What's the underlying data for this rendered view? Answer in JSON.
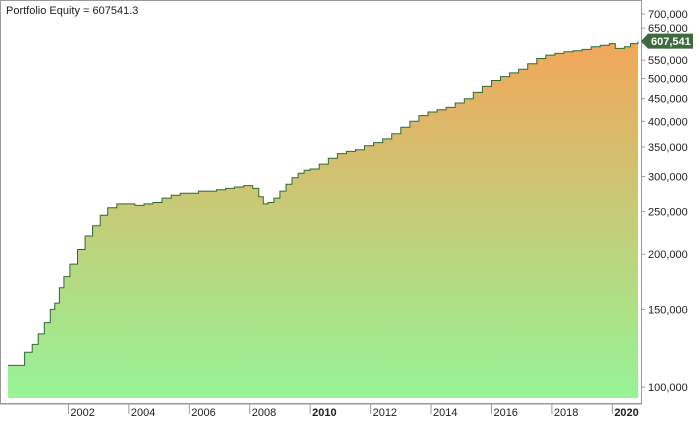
{
  "chart_data": {
    "type": "area",
    "title": "Portfolio Equity = 607541.3",
    "xlabel": "",
    "ylabel": "",
    "y_scale": "log",
    "ylim": [
      95000,
      700000
    ],
    "xlim": [
      2000.0,
      2020.85
    ],
    "grid": false,
    "legend": "none",
    "y_ticks": [
      {
        "value": 700000,
        "label": "700,000"
      },
      {
        "value": 650000,
        "label": "650,000"
      },
      {
        "value": 600000,
        "label": "600,000"
      },
      {
        "value": 550000,
        "label": "550,000"
      },
      {
        "value": 500000,
        "label": "500,000"
      },
      {
        "value": 450000,
        "label": "450,000"
      },
      {
        "value": 400000,
        "label": "400,000"
      },
      {
        "value": 350000,
        "label": "350,000"
      },
      {
        "value": 300000,
        "label": "300,000"
      },
      {
        "value": 250000,
        "label": "250,000"
      },
      {
        "value": 200000,
        "label": "200,000"
      },
      {
        "value": 150000,
        "label": "150,000"
      },
      {
        "value": 100000,
        "label": "100,000"
      }
    ],
    "x_ticks": [
      {
        "value": 2002,
        "label": "2002",
        "bold": false
      },
      {
        "value": 2004,
        "label": "2004",
        "bold": false
      },
      {
        "value": 2006,
        "label": "2006",
        "bold": false
      },
      {
        "value": 2008,
        "label": "2008",
        "bold": false
      },
      {
        "value": 2010,
        "label": "2010",
        "bold": true
      },
      {
        "value": 2012,
        "label": "2012",
        "bold": false
      },
      {
        "value": 2014,
        "label": "2014",
        "bold": false
      },
      {
        "value": 2016,
        "label": "2016",
        "bold": false
      },
      {
        "value": 2018,
        "label": "2018",
        "bold": false
      },
      {
        "value": 2020,
        "label": "2020",
        "bold": true
      }
    ],
    "last_value_label": "607,541",
    "colors": {
      "fill_top": "#f2a65a",
      "fill_bottom": "#96f496",
      "line": "#2e6b2e",
      "badge": "#3d6b3d",
      "badge_text": "#ffffff",
      "axis_text": "#222222"
    },
    "x": [
      2000.0,
      2000.3,
      2000.55,
      2000.8,
      2001.0,
      2001.2,
      2001.4,
      2001.55,
      2001.7,
      2001.85,
      2002.05,
      2002.3,
      2002.55,
      2002.8,
      2003.05,
      2003.3,
      2003.6,
      2003.9,
      2004.2,
      2004.5,
      2004.8,
      2005.1,
      2005.4,
      2005.7,
      2006.0,
      2006.3,
      2006.6,
      2006.9,
      2007.2,
      2007.5,
      2007.8,
      2008.1,
      2008.3,
      2008.45,
      2008.6,
      2008.8,
      2009.0,
      2009.2,
      2009.4,
      2009.6,
      2009.8,
      2010.0,
      2010.3,
      2010.6,
      2010.9,
      2011.2,
      2011.5,
      2011.8,
      2012.1,
      2012.4,
      2012.7,
      2013.0,
      2013.3,
      2013.6,
      2013.9,
      2014.2,
      2014.5,
      2014.8,
      2015.1,
      2015.4,
      2015.7,
      2016.0,
      2016.3,
      2016.6,
      2016.9,
      2017.2,
      2017.5,
      2017.8,
      2018.1,
      2018.4,
      2018.7,
      2019.0,
      2019.3,
      2019.6,
      2019.9,
      2020.1,
      2020.4,
      2020.6,
      2020.85
    ],
    "values": [
      112000,
      112000,
      120000,
      125000,
      132000,
      140000,
      150000,
      155000,
      168000,
      178000,
      190000,
      205000,
      220000,
      232000,
      245000,
      255000,
      260000,
      260000,
      258000,
      260000,
      262000,
      268000,
      272000,
      275000,
      275000,
      278000,
      278000,
      280000,
      282000,
      284000,
      286000,
      282000,
      270000,
      260000,
      262000,
      268000,
      278000,
      288000,
      298000,
      305000,
      310000,
      312000,
      320000,
      330000,
      338000,
      342000,
      345000,
      352000,
      358000,
      365000,
      375000,
      388000,
      400000,
      412000,
      420000,
      425000,
      430000,
      440000,
      450000,
      465000,
      480000,
      495000,
      505000,
      515000,
      525000,
      540000,
      555000,
      565000,
      570000,
      575000,
      578000,
      582000,
      590000,
      595000,
      600000,
      585000,
      590000,
      600000,
      607541
    ]
  }
}
